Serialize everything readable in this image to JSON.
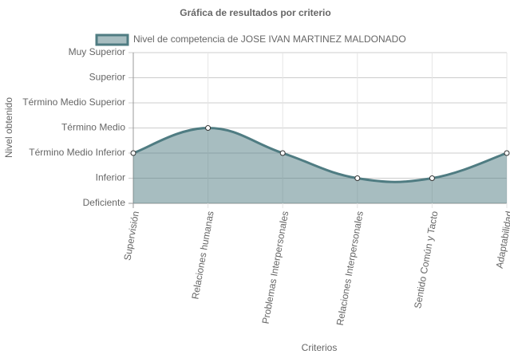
{
  "chart_data": {
    "type": "area",
    "title": "Gráfica de resultados por criterio",
    "x_label": "Criterios",
    "y_label": "Nivel obtenido",
    "categories": [
      "Supervisión",
      "Relaciones humanas",
      "Problemas Interpersonales",
      "Relaciones Interpersonales",
      "Sentido Común y Tacto",
      "Adaptabilidad"
    ],
    "series": [
      {
        "name": "Nivel de competencia de JOSE IVAN MARTINEZ MALDONADO",
        "color": "#4f7c82",
        "values": [
          2,
          3,
          2,
          1,
          1,
          2
        ]
      }
    ],
    "ylim": [
      0,
      6
    ],
    "yticks": [
      {
        "value": 0,
        "label": "Deficiente"
      },
      {
        "value": 1,
        "label": "Inferior"
      },
      {
        "value": 2,
        "label": "Término Medio Inferior"
      },
      {
        "value": 3,
        "label": "Término Medio"
      },
      {
        "value": 4,
        "label": "Término Medio Superior"
      },
      {
        "value": 5,
        "label": "Superior"
      },
      {
        "value": 6,
        "label": "Muy Superior"
      }
    ],
    "grid": true
  }
}
